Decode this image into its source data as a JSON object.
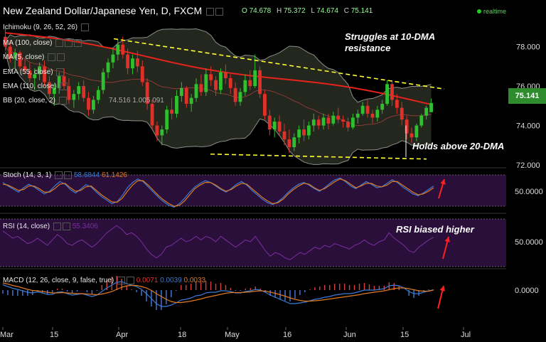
{
  "header": {
    "title": "New Zealand Dollar/Japanese Yen, D, FXCM",
    "ohlc": {
      "o_label": "O",
      "o": "74.678",
      "h_label": "H",
      "h": "75.372",
      "l_label": "L",
      "l": "74.674",
      "c_label": "C",
      "c": "75.141"
    },
    "realtime": "realtime"
  },
  "indicators": {
    "ichimoku": "Ichimoku (9, 26, 52, 26)",
    "ma": "MA (100, close)",
    "ma5": "MA (5, close)",
    "ema55": "EMA (55, close)",
    "ema110": "EMA (110, close)",
    "ema110_value": "74.516",
    "ema110_value2": "1.005",
    "bb": "BB (20, close, 2)",
    "bb_value": "091"
  },
  "annotations": {
    "resistance": [
      "Struggles at 10-DMA",
      "resistance"
    ],
    "support": "Holds above 20-DMA",
    "rsi": "RSI biased higher"
  },
  "price_tag": "75.141",
  "stoch": {
    "label": "Stoch (14, 3, 1)",
    "v1": "58.6844",
    "v2": "61.1426"
  },
  "rsi": {
    "label": "RSI (14, close)",
    "v": "55.3406"
  },
  "macd": {
    "label": "MACD (12, 26, close, 9, false, true)",
    "v1": "0.0071",
    "v2": "0.0039",
    "v3": "0.0033"
  },
  "colors": {
    "up": "#2fbf2f",
    "down": "#e0302a",
    "ma100": "#e8231c",
    "bb": "#8a8f8a",
    "stoch_k": "#3a7bd5",
    "stoch_d": "#e07a20",
    "rsi": "#7b2fa0",
    "osc_band": "#2a0f3a",
    "trend": "#ffff33"
  },
  "chart_data": [
    {
      "type": "candlestick",
      "title": "New Zealand Dollar/Japanese Yen, D, FXCM",
      "x_ticks": [
        "Mar",
        "15",
        "Apr",
        "18",
        "May",
        "16",
        "Jun",
        "15",
        "Jul"
      ],
      "y_ticks": [
        72.0,
        74.0,
        76.0,
        78.0
      ],
      "ylim": [
        72.0,
        79.5
      ],
      "candles": [
        [
          78.5,
          78.9,
          77.8,
          78.0
        ],
        [
          78.0,
          78.3,
          77.2,
          77.4
        ],
        [
          77.4,
          77.9,
          76.9,
          77.7
        ],
        [
          77.7,
          77.8,
          76.8,
          77.0
        ],
        [
          77.0,
          77.4,
          76.6,
          76.8
        ],
        [
          76.8,
          77.2,
          76.2,
          76.4
        ],
        [
          76.4,
          76.9,
          75.8,
          76.6
        ],
        [
          76.6,
          77.2,
          76.3,
          77.0
        ],
        [
          77.0,
          77.3,
          76.0,
          76.2
        ],
        [
          76.2,
          76.5,
          75.4,
          75.6
        ],
        [
          75.6,
          76.1,
          75.0,
          75.9
        ],
        [
          75.9,
          76.7,
          75.6,
          76.5
        ],
        [
          76.5,
          76.9,
          75.8,
          76.0
        ],
        [
          76.0,
          76.4,
          75.1,
          75.3
        ],
        [
          75.3,
          75.8,
          74.9,
          75.6
        ],
        [
          75.6,
          76.2,
          75.3,
          76.0
        ],
        [
          76.0,
          76.3,
          75.2,
          75.4
        ],
        [
          75.4,
          75.7,
          74.5,
          74.8
        ],
        [
          74.8,
          75.5,
          74.6,
          75.3
        ],
        [
          75.3,
          76.0,
          75.1,
          75.8
        ],
        [
          75.8,
          76.9,
          75.6,
          76.7
        ],
        [
          76.7,
          77.4,
          76.4,
          77.2
        ],
        [
          77.2,
          77.9,
          76.9,
          77.6
        ],
        [
          77.6,
          78.4,
          77.3,
          78.1
        ],
        [
          78.1,
          78.5,
          77.4,
          77.6
        ],
        [
          77.6,
          77.9,
          76.6,
          76.9
        ],
        [
          76.9,
          77.6,
          76.6,
          77.4
        ],
        [
          77.4,
          77.8,
          76.7,
          77.0
        ],
        [
          77.0,
          77.3,
          76.0,
          76.2
        ],
        [
          76.2,
          76.4,
          74.8,
          75.1
        ],
        [
          75.1,
          75.3,
          73.8,
          74.0
        ],
        [
          74.0,
          74.2,
          73.2,
          73.5
        ],
        [
          73.5,
          74.0,
          73.0,
          73.8
        ],
        [
          73.8,
          75.0,
          73.6,
          74.8
        ],
        [
          74.8,
          75.4,
          74.3,
          74.6
        ],
        [
          74.6,
          75.8,
          74.4,
          75.5
        ],
        [
          75.5,
          76.2,
          75.2,
          75.9
        ],
        [
          75.9,
          76.0,
          74.9,
          75.1
        ],
        [
          75.1,
          75.6,
          74.7,
          75.4
        ],
        [
          75.4,
          76.4,
          75.2,
          76.1
        ],
        [
          76.1,
          76.6,
          75.5,
          75.7
        ],
        [
          75.7,
          76.9,
          75.5,
          76.6
        ],
        [
          76.6,
          77.0,
          76.0,
          76.3
        ],
        [
          76.3,
          76.5,
          75.5,
          75.8
        ],
        [
          75.8,
          76.9,
          75.6,
          76.7
        ],
        [
          76.7,
          77.1,
          76.1,
          76.4
        ],
        [
          76.4,
          76.6,
          75.6,
          75.9
        ],
        [
          75.9,
          76.2,
          75.0,
          75.2
        ],
        [
          75.2,
          75.9,
          75.0,
          75.7
        ],
        [
          75.7,
          76.6,
          75.5,
          76.3
        ],
        [
          76.3,
          76.8,
          75.8,
          76.0
        ],
        [
          76.0,
          77.6,
          75.9,
          76.8
        ],
        [
          76.8,
          77.0,
          75.4,
          75.6
        ],
        [
          75.6,
          75.8,
          74.3,
          74.5
        ],
        [
          74.5,
          74.8,
          73.5,
          73.8
        ],
        [
          73.8,
          74.4,
          73.4,
          74.2
        ],
        [
          74.2,
          74.5,
          73.5,
          73.7
        ],
        [
          73.7,
          74.1,
          73.0,
          73.3
        ],
        [
          73.3,
          73.8,
          72.6,
          72.9
        ],
        [
          72.9,
          73.6,
          72.7,
          73.4
        ],
        [
          73.4,
          74.0,
          73.1,
          73.8
        ],
        [
          73.8,
          74.3,
          73.2,
          73.5
        ],
        [
          73.5,
          74.2,
          73.3,
          74.0
        ],
        [
          74.0,
          74.6,
          73.7,
          74.3
        ],
        [
          74.3,
          74.5,
          73.8,
          74.0
        ],
        [
          74.0,
          74.6,
          73.8,
          74.4
        ],
        [
          74.4,
          74.6,
          73.8,
          74.1
        ],
        [
          74.1,
          74.7,
          74.0,
          74.5
        ],
        [
          74.5,
          74.9,
          74.1,
          74.3
        ],
        [
          74.3,
          74.5,
          73.9,
          74.2
        ],
        [
          74.2,
          74.4,
          73.7,
          73.9
        ],
        [
          73.9,
          74.6,
          73.8,
          74.4
        ],
        [
          74.4,
          74.8,
          74.1,
          74.6
        ],
        [
          74.6,
          75.2,
          74.5,
          75.0
        ],
        [
          75.0,
          75.3,
          74.4,
          74.6
        ],
        [
          74.6,
          74.8,
          74.1,
          74.4
        ],
        [
          74.4,
          75.0,
          74.2,
          74.8
        ],
        [
          74.8,
          75.3,
          74.6,
          75.1
        ],
        [
          75.1,
          76.3,
          75.0,
          76.1
        ],
        [
          76.1,
          76.3,
          75.0,
          75.3
        ],
        [
          75.3,
          75.6,
          74.6,
          74.9
        ],
        [
          74.9,
          75.2,
          74.0,
          74.3
        ],
        [
          74.3,
          74.5,
          73.3,
          73.6
        ],
        [
          73.6,
          73.9,
          73.1,
          73.4
        ],
        [
          73.4,
          74.1,
          73.2,
          74.0
        ],
        [
          74.0,
          74.6,
          73.9,
          74.5
        ],
        [
          74.5,
          75.0,
          74.3,
          74.9
        ],
        [
          74.678,
          75.372,
          74.674,
          75.141
        ]
      ]
    },
    {
      "type": "line",
      "title": "Stoch (14, 3, 1)",
      "y_ticks": [
        50.0
      ],
      "ylim": [
        0,
        100
      ],
      "series": [
        {
          "values": [
            70,
            62,
            55,
            48,
            58,
            66,
            60,
            52,
            44,
            50,
            62,
            72,
            66,
            54,
            46,
            55,
            65,
            60,
            48,
            38,
            30,
            22,
            26,
            40,
            58,
            70,
            78,
            72,
            60,
            48,
            36,
            26,
            18,
            14,
            22,
            34,
            48,
            60,
            68,
            74,
            70,
            62,
            54,
            48,
            56,
            66,
            72,
            64,
            52,
            42,
            32,
            24,
            20,
            26,
            36,
            48,
            58,
            66,
            70,
            64,
            56,
            50,
            58,
            68,
            76,
            80,
            72,
            62,
            56,
            64,
            72,
            66,
            58,
            60,
            68,
            76,
            70,
            60,
            52,
            44,
            40,
            46,
            54,
            62
          ]
        },
        {
          "values": [
            66,
            64,
            58,
            52,
            54,
            62,
            62,
            56,
            48,
            48,
            56,
            66,
            68,
            58,
            50,
            52,
            60,
            62,
            52,
            42,
            34,
            26,
            25,
            34,
            50,
            64,
            74,
            74,
            64,
            52,
            40,
            30,
            22,
            16,
            18,
            28,
            42,
            56,
            64,
            70,
            70,
            64,
            56,
            50,
            54,
            62,
            68,
            66,
            56,
            46,
            36,
            28,
            22,
            24,
            32,
            44,
            54,
            62,
            68,
            66,
            58,
            52,
            56,
            64,
            72,
            78,
            74,
            66,
            58,
            62,
            68,
            68,
            62,
            60,
            64,
            72,
            72,
            64,
            56,
            48,
            42,
            44,
            50,
            58
          ]
        }
      ]
    },
    {
      "type": "line",
      "title": "RSI (14, close)",
      "y_ticks": [
        50.0
      ],
      "ylim": [
        20,
        80
      ],
      "series": [
        {
          "values": [
            62,
            58,
            54,
            56,
            52,
            48,
            50,
            54,
            50,
            46,
            52,
            58,
            54,
            48,
            46,
            50,
            52,
            48,
            44,
            48,
            54,
            60,
            64,
            68,
            64,
            58,
            60,
            56,
            50,
            42,
            36,
            32,
            36,
            44,
            46,
            50,
            54,
            50,
            52,
            56,
            52,
            56,
            54,
            50,
            56,
            52,
            48,
            44,
            48,
            52,
            50,
            56,
            48,
            40,
            34,
            38,
            36,
            32,
            30,
            34,
            38,
            36,
            40,
            44,
            42,
            46,
            44,
            48,
            46,
            44,
            42,
            46,
            48,
            52,
            48,
            46,
            50,
            52,
            60,
            54,
            50,
            46,
            40,
            38,
            44,
            48,
            52,
            55
          ]
        }
      ]
    },
    {
      "type": "line",
      "title": "MACD (12, 26, close, 9, false, true)",
      "y_ticks": [
        0.0
      ],
      "ylim": [
        -1.0,
        0.5
      ],
      "series": [
        {
          "values": [
            0.15,
            0.1,
            0.05,
            0.02,
            -0.02,
            -0.06,
            -0.08,
            -0.05,
            -0.08,
            -0.12,
            -0.12,
            -0.06,
            -0.05,
            -0.1,
            -0.14,
            -0.12,
            -0.1,
            -0.14,
            -0.18,
            -0.14,
            -0.04,
            0.06,
            0.14,
            0.22,
            0.24,
            0.18,
            0.14,
            0.1,
            0.02,
            -0.1,
            -0.24,
            -0.38,
            -0.46,
            -0.46,
            -0.42,
            -0.36,
            -0.28,
            -0.26,
            -0.22,
            -0.16,
            -0.14,
            -0.08,
            -0.06,
            -0.06,
            -0.02,
            -0.02,
            -0.04,
            -0.08,
            -0.08,
            -0.04,
            -0.02,
            0.02,
            0.0,
            -0.06,
            -0.14,
            -0.2,
            -0.26,
            -0.32,
            -0.38,
            -0.38,
            -0.36,
            -0.34,
            -0.3,
            -0.26,
            -0.24,
            -0.2,
            -0.18,
            -0.14,
            -0.12,
            -0.1,
            -0.1,
            -0.08,
            -0.04,
            0.0,
            0.0,
            0.0,
            0.02,
            0.04,
            0.12,
            0.14,
            0.12,
            0.06,
            -0.04,
            -0.1,
            -0.1,
            -0.06,
            -0.02,
            0.0071
          ]
        },
        {
          "values": [
            0.2,
            0.17,
            0.13,
            0.1,
            0.06,
            0.02,
            -0.01,
            -0.02,
            -0.04,
            -0.06,
            -0.08,
            -0.08,
            -0.07,
            -0.08,
            -0.09,
            -0.1,
            -0.1,
            -0.11,
            -0.12,
            -0.13,
            -0.11,
            -0.08,
            -0.04,
            0.02,
            0.08,
            0.12,
            0.13,
            0.13,
            0.1,
            0.06,
            -0.01,
            -0.1,
            -0.18,
            -0.26,
            -0.32,
            -0.35,
            -0.35,
            -0.33,
            -0.31,
            -0.28,
            -0.25,
            -0.21,
            -0.18,
            -0.15,
            -0.12,
            -0.09,
            -0.07,
            -0.07,
            -0.07,
            -0.06,
            -0.05,
            -0.03,
            -0.02,
            -0.03,
            -0.06,
            -0.09,
            -0.13,
            -0.17,
            -0.22,
            -0.26,
            -0.29,
            -0.31,
            -0.31,
            -0.3,
            -0.29,
            -0.27,
            -0.25,
            -0.23,
            -0.21,
            -0.19,
            -0.17,
            -0.15,
            -0.13,
            -0.1,
            -0.08,
            -0.06,
            -0.04,
            -0.02,
            0.01,
            0.04,
            0.06,
            0.06,
            0.04,
            0.01,
            -0.02,
            -0.03,
            -0.03,
            0.0039
          ]
        }
      ]
    }
  ]
}
